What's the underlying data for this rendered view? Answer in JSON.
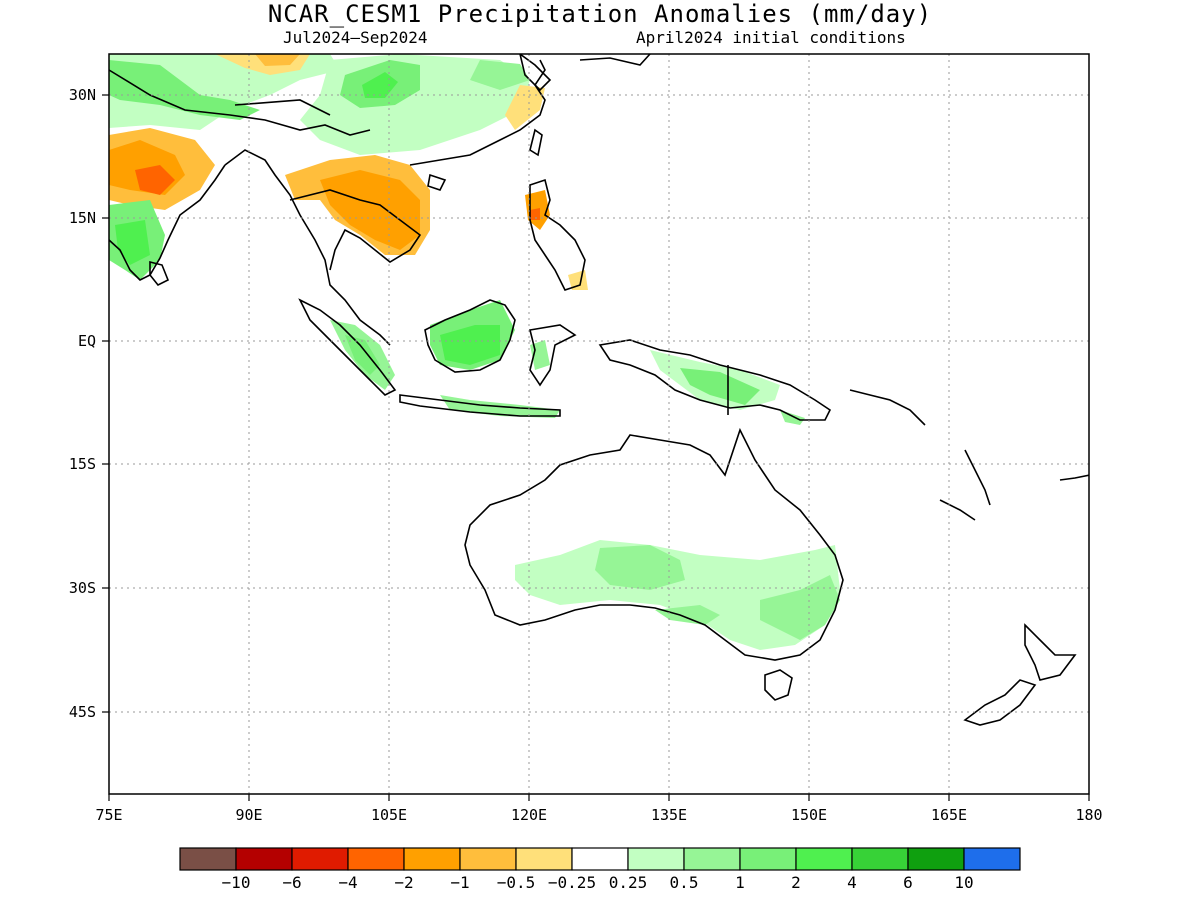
{
  "title": "NCAR_CESM1 Precipitation Anomalies (mm/day)",
  "subtitle_period": "Jul2024–Sep2024",
  "subtitle_init": "April2024 initial conditions",
  "map": {
    "projection": "equirectangular",
    "lon_range": [
      75,
      180
    ],
    "lat_range": [
      -55,
      35
    ],
    "grid": "dotted",
    "x_ticks": [
      "75E",
      "90E",
      "105E",
      "120E",
      "135E",
      "150E",
      "165E",
      "180"
    ],
    "y_ticks": [
      "30N",
      "15N",
      "EQ",
      "15S",
      "30S",
      "45S"
    ],
    "anomaly_regions": [
      {
        "region": "Northern India",
        "category": "-1 to -2",
        "sign": "dry"
      },
      {
        "region": "Indochina (Thailand, Laos, Cambodia)",
        "category": "-1 to -2",
        "sign": "dry"
      },
      {
        "region": "Northern Philippines",
        "category": "-2 to -4",
        "sign": "dry"
      },
      {
        "region": "Tibetan Plateau / South China",
        "category": "0.5 to 2",
        "sign": "wet"
      },
      {
        "region": "Borneo",
        "category": "1 to 2",
        "sign": "wet"
      },
      {
        "region": "Sumatra",
        "category": "0.5 to 1",
        "sign": "wet"
      },
      {
        "region": "New Guinea",
        "category": "0.5 to 1",
        "sign": "wet"
      },
      {
        "region": "Southern and Eastern Australia",
        "category": "0.25 to 1",
        "sign": "wet"
      }
    ]
  },
  "colorbar": {
    "colors": [
      "#7a4f46",
      "#b40000",
      "#e01b00",
      "#ff6400",
      "#ffa000",
      "#ffbe3c",
      "#ffe07a",
      "#ffffff",
      "#c2ffc2",
      "#96f596",
      "#78f078",
      "#4ff04f",
      "#37d237",
      "#0fa00f",
      "#1e6eeb"
    ],
    "labels": [
      "−10",
      "−6",
      "−4",
      "−2",
      "−1",
      "−0.5",
      "−0.25",
      "0.25",
      "0.5",
      "1",
      "2",
      "4",
      "6",
      "10"
    ]
  }
}
